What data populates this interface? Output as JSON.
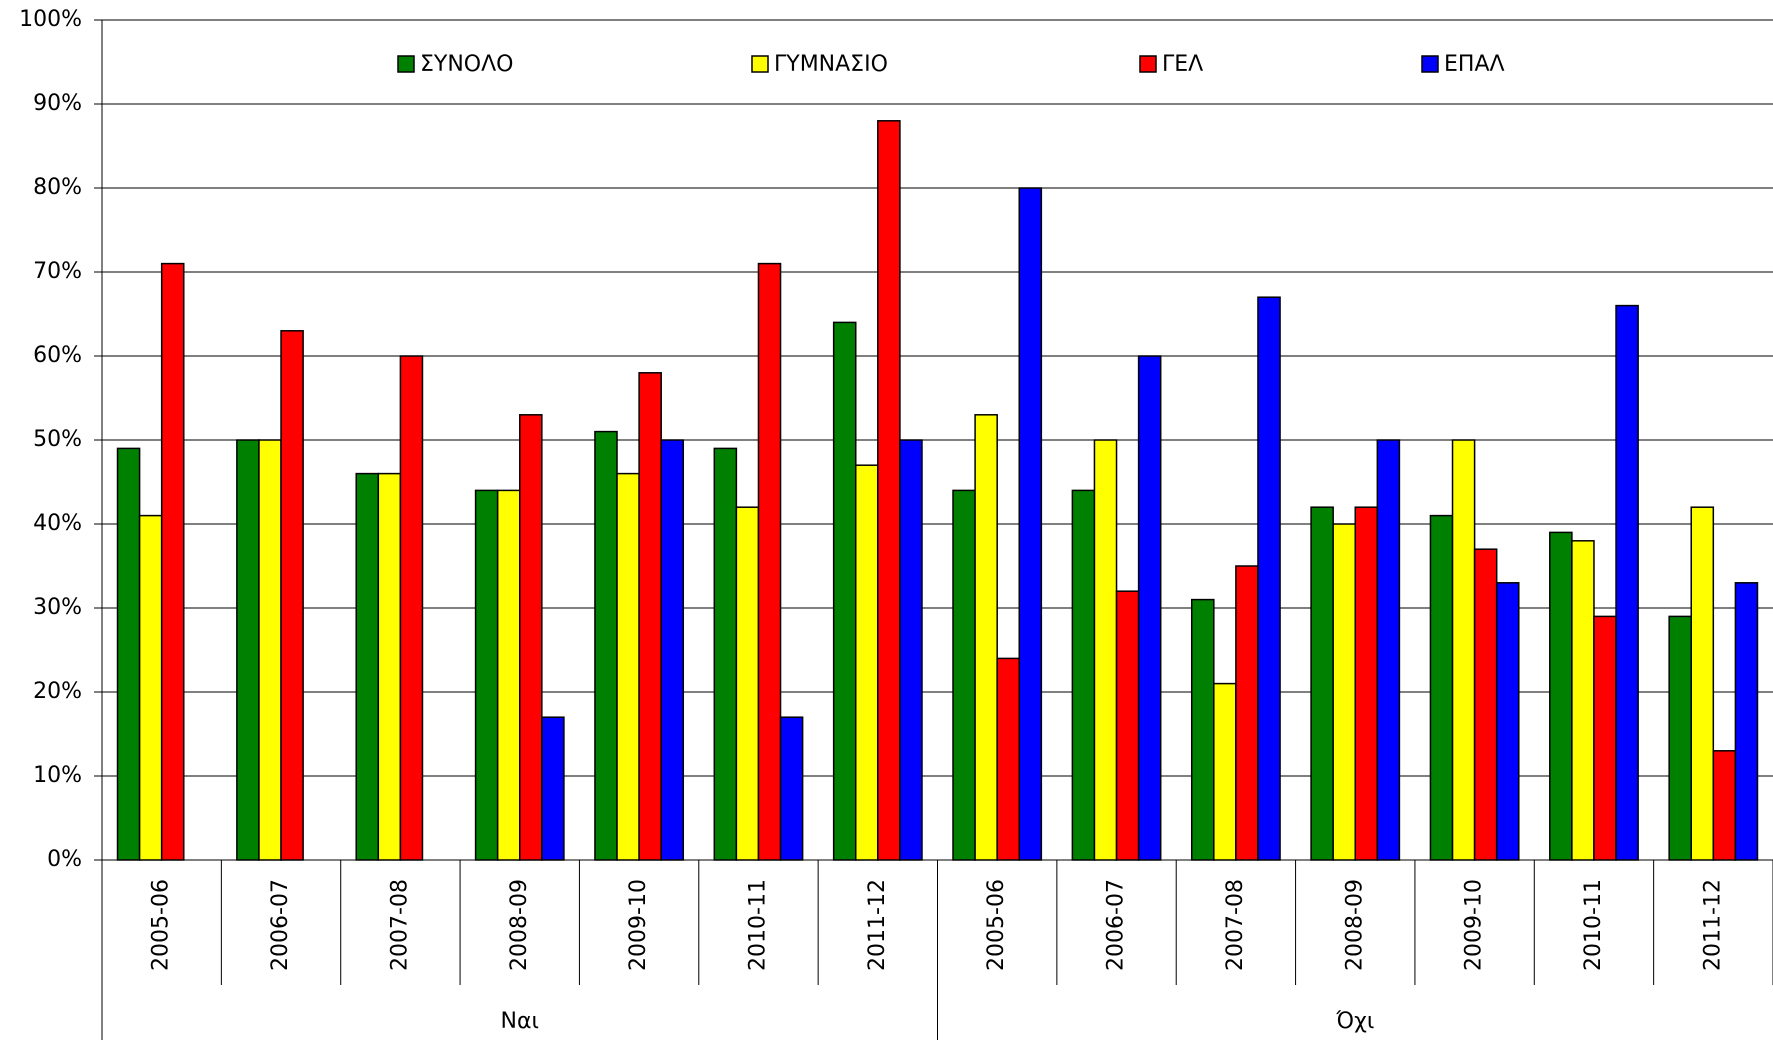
{
  "chart_data": {
    "type": "bar",
    "groups": [
      "Ναι",
      "Όχι"
    ],
    "categories": [
      "2005-06",
      "2006-07",
      "2007-08",
      "2008-09",
      "2009-10",
      "2010-11",
      "2011-12",
      "2005-06",
      "2006-07",
      "2007-08",
      "2008-09",
      "2009-10",
      "2010-11",
      "2011-12"
    ],
    "series": [
      {
        "name": "ΣΥΝΟΛΟ",
        "color": "#008000",
        "values": [
          49,
          50,
          46,
          44,
          51,
          49,
          64,
          44,
          44,
          31,
          42,
          41,
          39,
          29
        ]
      },
      {
        "name": "ΓΥΜΝΑΣΙΟ",
        "color": "#ffff00",
        "values": [
          41,
          50,
          46,
          44,
          46,
          42,
          47,
          53,
          50,
          21,
          40,
          50,
          38,
          42
        ]
      },
      {
        "name": "ΓΕΛ",
        "color": "#ff0000",
        "values": [
          71,
          63,
          60,
          53,
          58,
          71,
          88,
          24,
          32,
          35,
          42,
          37,
          29,
          13
        ]
      },
      {
        "name": "ΕΠΑΛ",
        "color": "#0000ff",
        "values": [
          null,
          null,
          null,
          17,
          50,
          17,
          50,
          80,
          60,
          67,
          50,
          33,
          66,
          33
        ]
      }
    ],
    "ylim": [
      0,
      100
    ],
    "yticks": [
      {
        "value": 0,
        "label": "0%"
      },
      {
        "value": 10,
        "label": "10%"
      },
      {
        "value": 20,
        "label": "20%"
      },
      {
        "value": 30,
        "label": "30%"
      },
      {
        "value": 40,
        "label": "40%"
      },
      {
        "value": 50,
        "label": "50%"
      },
      {
        "value": 60,
        "label": "60%"
      },
      {
        "value": 70,
        "label": "70%"
      },
      {
        "value": 80,
        "label": "80%"
      },
      {
        "value": 90,
        "label": "90%"
      },
      {
        "value": 100,
        "label": "100%"
      }
    ],
    "grid": true,
    "legend": "top"
  }
}
